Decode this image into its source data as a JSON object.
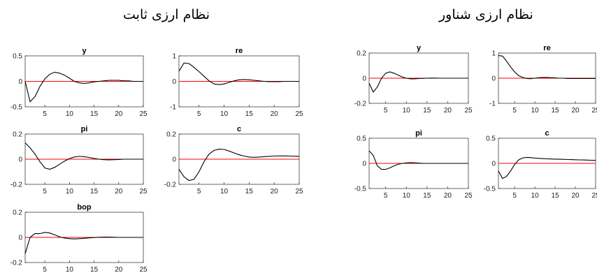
{
  "group_titles": {
    "left": "نظام ارزی ثابت",
    "right": "نظام ارزی شناور"
  },
  "colors": {
    "response_line": "#000000",
    "zero_line": "#ff0000",
    "axes": "#262626"
  },
  "chart_data": [
    {
      "id": "fixed-y",
      "group": "fixed",
      "type": "line",
      "title": "y",
      "xlim": [
        1,
        25
      ],
      "ylim": [
        -0.5,
        0.5
      ],
      "yticks": [
        "0.5",
        "0",
        "-0.5"
      ],
      "ytick_values": [
        0.5,
        0,
        -0.5
      ],
      "xticks": [
        "5",
        "10",
        "15",
        "20",
        "25"
      ],
      "x": [
        1,
        2,
        3,
        4,
        5,
        6,
        7,
        8,
        9,
        10,
        11,
        12,
        13,
        14,
        15,
        16,
        17,
        18,
        19,
        20,
        21,
        22,
        23,
        24,
        25
      ],
      "series": [
        {
          "values": [
            0,
            -0.4,
            -0.3,
            -0.1,
            0.05,
            0.14,
            0.18,
            0.16,
            0.12,
            0.06,
            0.0,
            -0.03,
            -0.04,
            -0.03,
            -0.01,
            0.0,
            0.01,
            0.02,
            0.02,
            0.02,
            0.01,
            0.01,
            0.0,
            0.0,
            0.0
          ]
        }
      ]
    },
    {
      "id": "fixed-re",
      "group": "fixed",
      "type": "line",
      "title": "re",
      "xlim": [
        1,
        25
      ],
      "ylim": [
        -1,
        1
      ],
      "yticks": [
        "1",
        "0",
        "-1"
      ],
      "ytick_values": [
        1,
        0,
        -1
      ],
      "xticks": [
        "5",
        "10",
        "15",
        "20",
        "25"
      ],
      "x": [
        1,
        2,
        3,
        4,
        5,
        6,
        7,
        8,
        9,
        10,
        11,
        12,
        13,
        14,
        15,
        16,
        17,
        18,
        19,
        20,
        21,
        22,
        23,
        24,
        25
      ],
      "series": [
        {
          "values": [
            0.4,
            0.72,
            0.7,
            0.55,
            0.38,
            0.2,
            0.02,
            -0.1,
            -0.13,
            -0.1,
            -0.04,
            0.02,
            0.06,
            0.07,
            0.06,
            0.04,
            0.02,
            0.0,
            -0.01,
            -0.01,
            -0.01,
            0.0,
            0.0,
            0.0,
            0.0
          ]
        }
      ]
    },
    {
      "id": "fixed-pi",
      "group": "fixed",
      "type": "line",
      "title": "pi",
      "xlim": [
        1,
        25
      ],
      "ylim": [
        -0.2,
        0.2
      ],
      "yticks": [
        "0.2",
        "0",
        "-0.2"
      ],
      "ytick_values": [
        0.2,
        0,
        -0.2
      ],
      "xticks": [
        "5",
        "10",
        "15",
        "20",
        "25"
      ],
      "x": [
        1,
        2,
        3,
        4,
        5,
        6,
        7,
        8,
        9,
        10,
        11,
        12,
        13,
        14,
        15,
        16,
        17,
        18,
        19,
        20,
        21,
        22,
        23,
        24,
        25
      ],
      "series": [
        {
          "values": [
            0.13,
            0.09,
            0.04,
            -0.02,
            -0.07,
            -0.08,
            -0.065,
            -0.04,
            -0.015,
            0.005,
            0.018,
            0.022,
            0.02,
            0.014,
            0.006,
            0.0,
            -0.004,
            -0.005,
            -0.004,
            -0.002,
            0.0,
            0.0,
            0.0,
            0.0,
            0.0
          ]
        }
      ]
    },
    {
      "id": "fixed-c",
      "group": "fixed",
      "type": "line",
      "title": "c",
      "xlim": [
        1,
        25
      ],
      "ylim": [
        -0.2,
        0.2
      ],
      "yticks": [
        "0.2",
        "0",
        "-0.2"
      ],
      "ytick_values": [
        0.2,
        0,
        -0.2
      ],
      "xticks": [
        "5",
        "10",
        "15",
        "20",
        "25"
      ],
      "x": [
        1,
        2,
        3,
        4,
        5,
        6,
        7,
        8,
        9,
        10,
        11,
        12,
        13,
        14,
        15,
        16,
        17,
        18,
        19,
        20,
        21,
        22,
        23,
        24,
        25
      ],
      "series": [
        {
          "values": [
            -0.08,
            -0.14,
            -0.17,
            -0.16,
            -0.1,
            -0.02,
            0.04,
            0.07,
            0.08,
            0.078,
            0.065,
            0.05,
            0.035,
            0.025,
            0.017,
            0.015,
            0.017,
            0.02,
            0.023,
            0.025,
            0.026,
            0.026,
            0.025,
            0.024,
            0.023
          ]
        }
      ]
    },
    {
      "id": "fixed-bop",
      "group": "fixed",
      "type": "line",
      "title": "bop",
      "xlim": [
        1,
        25
      ],
      "ylim": [
        -0.2,
        0.2
      ],
      "yticks": [
        "0.2",
        "0",
        "-0.2"
      ],
      "ytick_values": [
        0.2,
        0,
        -0.2
      ],
      "xticks": [
        "5",
        "10",
        "15",
        "20",
        "25"
      ],
      "x": [
        1,
        2,
        3,
        4,
        5,
        6,
        7,
        8,
        9,
        10,
        11,
        12,
        13,
        14,
        15,
        16,
        17,
        18,
        19,
        20,
        21,
        22,
        23,
        24,
        25
      ],
      "series": [
        {
          "values": [
            -0.13,
            0.0,
            0.03,
            0.03,
            0.04,
            0.035,
            0.02,
            0.005,
            -0.005,
            -0.01,
            -0.012,
            -0.01,
            -0.007,
            -0.004,
            -0.001,
            0.001,
            0.002,
            0.002,
            0.001,
            0.0,
            0.0,
            0.0,
            0.0,
            0.0,
            0.0
          ]
        }
      ]
    },
    {
      "id": "float-y",
      "group": "floating",
      "type": "line",
      "title": "y",
      "xlim": [
        1,
        25
      ],
      "ylim": [
        -0.2,
        0.2
      ],
      "yticks": [
        "0.2",
        "0",
        "-0.2"
      ],
      "ytick_values": [
        0.2,
        0,
        -0.2
      ],
      "xticks": [
        "5",
        "10",
        "15",
        "20",
        "25"
      ],
      "x": [
        1,
        2,
        3,
        4,
        5,
        6,
        7,
        8,
        9,
        10,
        11,
        12,
        13,
        14,
        15,
        16,
        17,
        18,
        19,
        20,
        21,
        22,
        23,
        24,
        25
      ],
      "series": [
        {
          "values": [
            -0.04,
            -0.11,
            -0.07,
            0.0,
            0.04,
            0.05,
            0.04,
            0.025,
            0.01,
            0.0,
            -0.005,
            -0.005,
            -0.003,
            -0.001,
            0.0,
            0.001,
            0.001,
            0.0,
            0.0,
            0.0,
            0.0,
            0.0,
            0.0,
            0.0,
            0.0
          ]
        }
      ]
    },
    {
      "id": "float-re",
      "group": "floating",
      "type": "line",
      "title": "re",
      "xlim": [
        1,
        25
      ],
      "ylim": [
        -1,
        1
      ],
      "yticks": [
        "1",
        "0",
        "-1"
      ],
      "ytick_values": [
        1,
        0,
        -1
      ],
      "xticks": [
        "5",
        "10",
        "15",
        "20",
        "25"
      ],
      "x": [
        1,
        2,
        3,
        4,
        5,
        6,
        7,
        8,
        9,
        10,
        11,
        12,
        13,
        14,
        15,
        16,
        17,
        18,
        19,
        20,
        21,
        22,
        23,
        24,
        25
      ],
      "series": [
        {
          "values": [
            0.9,
            0.88,
            0.68,
            0.45,
            0.25,
            0.1,
            0.03,
            -0.01,
            -0.02,
            0.0,
            0.02,
            0.03,
            0.03,
            0.02,
            0.01,
            0.0,
            0.0,
            -0.01,
            -0.01,
            -0.01,
            -0.01,
            -0.01,
            -0.01,
            -0.01,
            -0.01
          ]
        }
      ]
    },
    {
      "id": "float-pi",
      "group": "floating",
      "type": "line",
      "title": "pi",
      "xlim": [
        1,
        25
      ],
      "ylim": [
        -0.5,
        0.5
      ],
      "yticks": [
        "0.5",
        "0",
        "-0.5"
      ],
      "ytick_values": [
        0.5,
        0,
        -0.5
      ],
      "xticks": [
        "5",
        "10",
        "15",
        "20",
        "25"
      ],
      "x": [
        1,
        2,
        3,
        4,
        5,
        6,
        7,
        8,
        9,
        10,
        11,
        12,
        13,
        14,
        15,
        16,
        17,
        18,
        19,
        20,
        21,
        22,
        23,
        24,
        25
      ],
      "series": [
        {
          "values": [
            0.25,
            0.16,
            -0.05,
            -0.12,
            -0.12,
            -0.09,
            -0.05,
            -0.02,
            0.0,
            0.01,
            0.015,
            0.01,
            0.005,
            0.0,
            0.0,
            0.0,
            0.0,
            0.0,
            0.0,
            0.0,
            0.0,
            0.0,
            0.0,
            0.0,
            0.0
          ]
        }
      ]
    },
    {
      "id": "float-c",
      "group": "floating",
      "type": "line",
      "title": "c",
      "xlim": [
        1,
        25
      ],
      "ylim": [
        -0.5,
        0.5
      ],
      "yticks": [
        "0.5",
        "0",
        "-0.5"
      ],
      "ytick_values": [
        0.5,
        0,
        -0.5
      ],
      "xticks": [
        "5",
        "10",
        "15",
        "20",
        "25"
      ],
      "x": [
        1,
        2,
        3,
        4,
        5,
        6,
        7,
        8,
        9,
        10,
        11,
        12,
        13,
        14,
        15,
        16,
        17,
        18,
        19,
        20,
        21,
        22,
        23,
        24,
        25
      ],
      "series": [
        {
          "values": [
            -0.15,
            -0.3,
            -0.26,
            -0.15,
            -0.02,
            0.07,
            0.11,
            0.12,
            0.115,
            0.105,
            0.1,
            0.095,
            0.09,
            0.088,
            0.085,
            0.082,
            0.08,
            0.077,
            0.075,
            0.072,
            0.07,
            0.068,
            0.065,
            0.062,
            0.06
          ]
        }
      ]
    }
  ]
}
